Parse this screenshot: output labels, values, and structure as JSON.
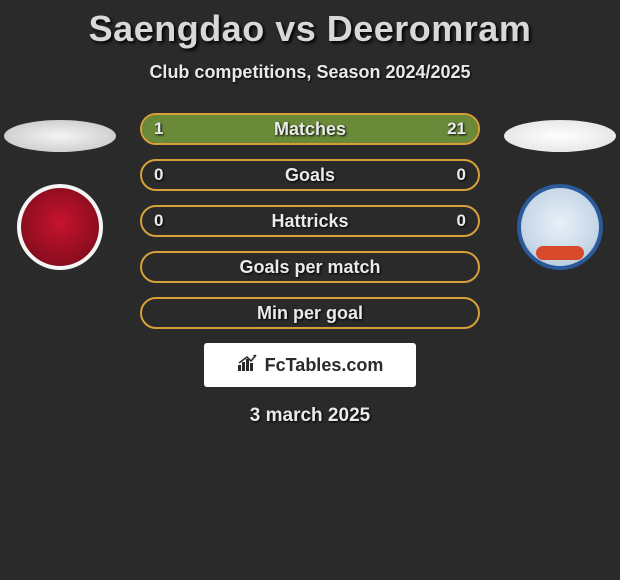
{
  "title": "Saengdao vs Deeromram",
  "subtitle": "Club competitions, Season 2024/2025",
  "date": "3 march 2025",
  "brand": {
    "text": "FcTables.com"
  },
  "colors": {
    "row_border": "#d8a038",
    "fill_left": "#6a8a3a",
    "fill_right": "#6a8a3a",
    "background": "#2a2a2a"
  },
  "left_player": {
    "badge_glyph": ""
  },
  "right_player": {
    "badge_glyph": ""
  },
  "stats": [
    {
      "label": "Matches",
      "left_val": "1",
      "right_val": "21",
      "left_pct": 4.5,
      "right_pct": 95.5,
      "show_vals": true
    },
    {
      "label": "Goals",
      "left_val": "0",
      "right_val": "0",
      "left_pct": 0,
      "right_pct": 0,
      "show_vals": true
    },
    {
      "label": "Hattricks",
      "left_val": "0",
      "right_val": "0",
      "left_pct": 0,
      "right_pct": 0,
      "show_vals": true
    },
    {
      "label": "Goals per match",
      "left_val": "",
      "right_val": "",
      "left_pct": 0,
      "right_pct": 0,
      "show_vals": false
    },
    {
      "label": "Min per goal",
      "left_val": "",
      "right_val": "",
      "left_pct": 0,
      "right_pct": 0,
      "show_vals": false
    }
  ]
}
